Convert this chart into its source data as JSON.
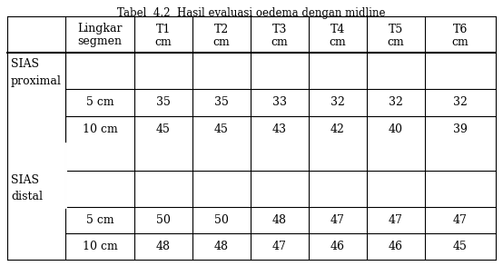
{
  "title": "Tabel  4.2  Hasil evaluasi oedema dengan midline",
  "title_fontsize": 8.5,
  "col_headers_line1": [
    "Lingkar",
    "T1",
    "T2",
    "T3",
    "T4",
    "T5",
    "T6"
  ],
  "col_headers_line2": [
    "segmen",
    "cm",
    "cm",
    "cm",
    "cm",
    "cm",
    "cm"
  ],
  "row_groups": [
    {
      "group_label_line1": "SIAS",
      "group_label_line2": "proximal",
      "rows": [
        {
          "label": "5 cm",
          "values": [
            "35",
            "35",
            "33",
            "32",
            "32",
            "32"
          ]
        },
        {
          "label": "10 cm",
          "values": [
            "45",
            "45",
            "43",
            "42",
            "40",
            "39"
          ]
        }
      ]
    },
    {
      "group_label_line1": "SIAS",
      "group_label_line2": "distal",
      "rows": [
        {
          "label": "5 cm",
          "values": [
            "50",
            "50",
            "48",
            "47",
            "47",
            "47"
          ]
        },
        {
          "label": "10 cm",
          "values": [
            "48",
            "48",
            "47",
            "46",
            "46",
            "45"
          ]
        }
      ]
    }
  ],
  "font_family": "serif",
  "font_size": 9,
  "bg_color": "#ffffff",
  "line_color": "#000000",
  "text_color": "#000000"
}
